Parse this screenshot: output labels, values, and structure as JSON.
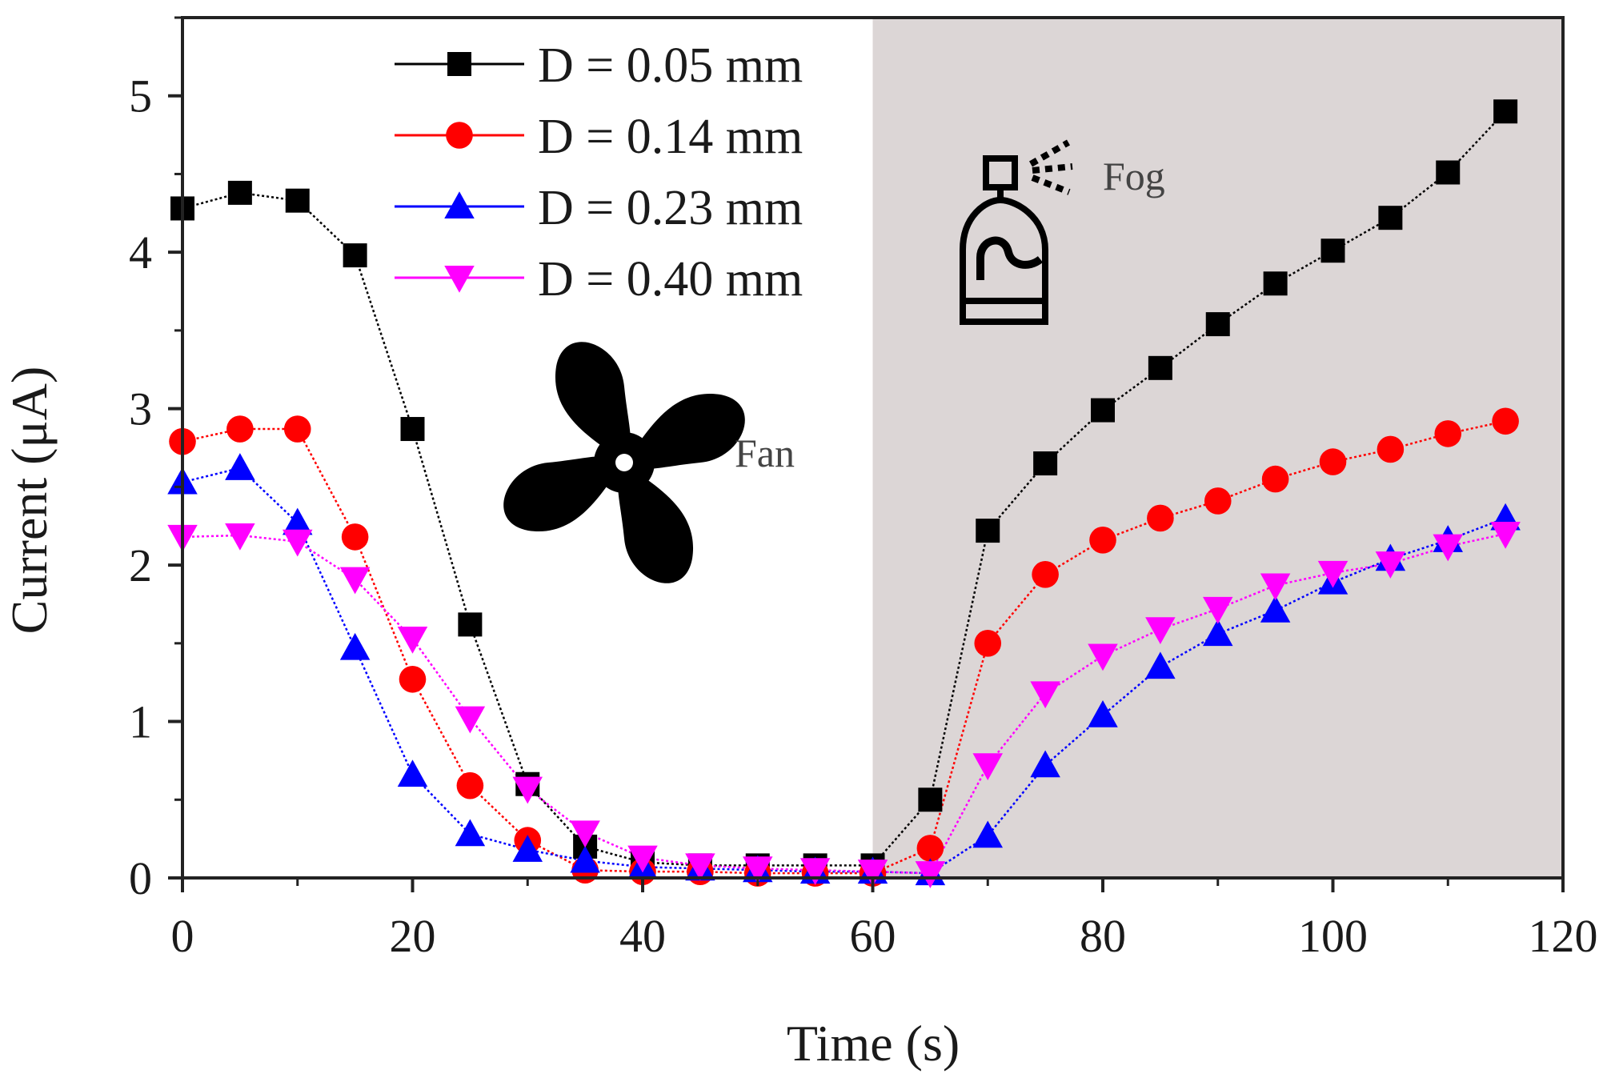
{
  "chart_data": {
    "type": "line",
    "title": "",
    "xlabel": "Time (s)",
    "ylabel": "Current (μA)",
    "xlim": [
      0,
      120
    ],
    "ylim": [
      0,
      5.5
    ],
    "x_ticks": [
      0,
      20,
      40,
      60,
      80,
      100,
      120
    ],
    "y_ticks": [
      0,
      1,
      2,
      3,
      4,
      5
    ],
    "x": [
      0,
      5,
      10,
      15,
      20,
      25,
      30,
      35,
      40,
      45,
      50,
      55,
      60,
      65,
      70,
      75,
      80,
      85,
      90,
      95,
      100,
      105,
      110,
      115
    ],
    "series": [
      {
        "name": "D = 0.05 mm",
        "color": "#000000",
        "marker": "square",
        "values": [
          4.28,
          4.38,
          4.33,
          3.98,
          2.87,
          1.62,
          0.6,
          0.2,
          0.1,
          0.08,
          0.08,
          0.08,
          0.08,
          0.5,
          2.22,
          2.65,
          2.99,
          3.26,
          3.54,
          3.8,
          4.01,
          4.22,
          4.51,
          4.9
        ]
      },
      {
        "name": "D = 0.14 mm",
        "color": "#ff0000",
        "marker": "circle",
        "values": [
          2.79,
          2.87,
          2.87,
          2.18,
          1.27,
          0.59,
          0.24,
          0.05,
          0.04,
          0.04,
          0.03,
          0.03,
          0.03,
          0.19,
          1.5,
          1.94,
          2.16,
          2.3,
          2.41,
          2.55,
          2.66,
          2.74,
          2.84,
          2.92
        ]
      },
      {
        "name": "D = 0.23 mm",
        "color": "#0000ff",
        "marker": "triangle-up",
        "values": [
          2.53,
          2.62,
          2.27,
          1.47,
          0.66,
          0.28,
          0.18,
          0.11,
          0.07,
          0.06,
          0.05,
          0.04,
          0.04,
          0.03,
          0.27,
          0.72,
          1.04,
          1.35,
          1.56,
          1.71,
          1.89,
          2.04,
          2.16,
          2.3
        ]
      },
      {
        "name": "D = 0.40 mm",
        "color": "#ff00ff",
        "marker": "triangle-down",
        "values": [
          2.18,
          2.19,
          2.15,
          1.91,
          1.53,
          1.02,
          0.57,
          0.29,
          0.13,
          0.08,
          0.06,
          0.05,
          0.04,
          0.03,
          0.72,
          1.18,
          1.42,
          1.59,
          1.72,
          1.87,
          1.95,
          2.01,
          2.12,
          2.2
        ]
      }
    ],
    "shaded_region": {
      "x_start": 60,
      "x_end": 120,
      "color": "#dcd6d6"
    },
    "annotations": [
      {
        "text": "Fan",
        "icon": "fan-icon"
      },
      {
        "text": "Fog",
        "icon": "spray-bottle-icon"
      }
    ],
    "legend_position": "top-center",
    "grid": false
  }
}
